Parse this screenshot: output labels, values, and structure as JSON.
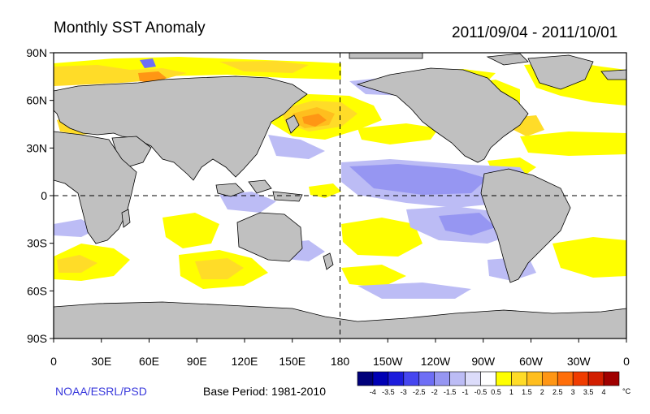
{
  "title": "Monthly SST Anomaly",
  "period": "2011/09/04 - 2011/10/01",
  "y_axis_labels": [
    "90N",
    "60N",
    "30N",
    "0",
    "30S",
    "60S",
    "90S"
  ],
  "x_axis_labels": [
    "0",
    "30E",
    "60E",
    "90E",
    "120E",
    "150E",
    "180",
    "150W",
    "120W",
    "90W",
    "60W",
    "30W",
    "0"
  ],
  "credit": "NOAA/ESRL/PSD",
  "base_period": "Base Period: 1981-2010",
  "colorbar": {
    "unit": "°C",
    "labels": [
      "-4",
      "-3.5",
      "-3",
      "-2.5",
      "-2",
      "-1.5",
      "-1",
      "-0.5",
      "0.5",
      "1",
      "1.5",
      "2",
      "2.5",
      "3",
      "3.5",
      "4"
    ],
    "colors": [
      "#00007a",
      "#0000b4",
      "#1c1cdc",
      "#4646f0",
      "#6e6ef5",
      "#9696f2",
      "#bcbcf5",
      "#dcdcfa",
      "#ffffff",
      "#ffff00",
      "#ffdc28",
      "#ffbe1e",
      "#ff9614",
      "#ff6e0a",
      "#f03c00",
      "#d21e00",
      "#a00000"
    ]
  },
  "colors": {
    "land": "#c0c0c0",
    "ocean": "#ffffff",
    "warm_light": "#ffff00",
    "warm_medium": "#ffdc28",
    "warm_strong": "#ffbe1e",
    "warm_hot": "#ff9614",
    "warm_extreme": "#f03c00",
    "cool_light": "#bcbcf5",
    "cool_medium": "#9696f2",
    "cool_strong": "#6e6ef5"
  }
}
